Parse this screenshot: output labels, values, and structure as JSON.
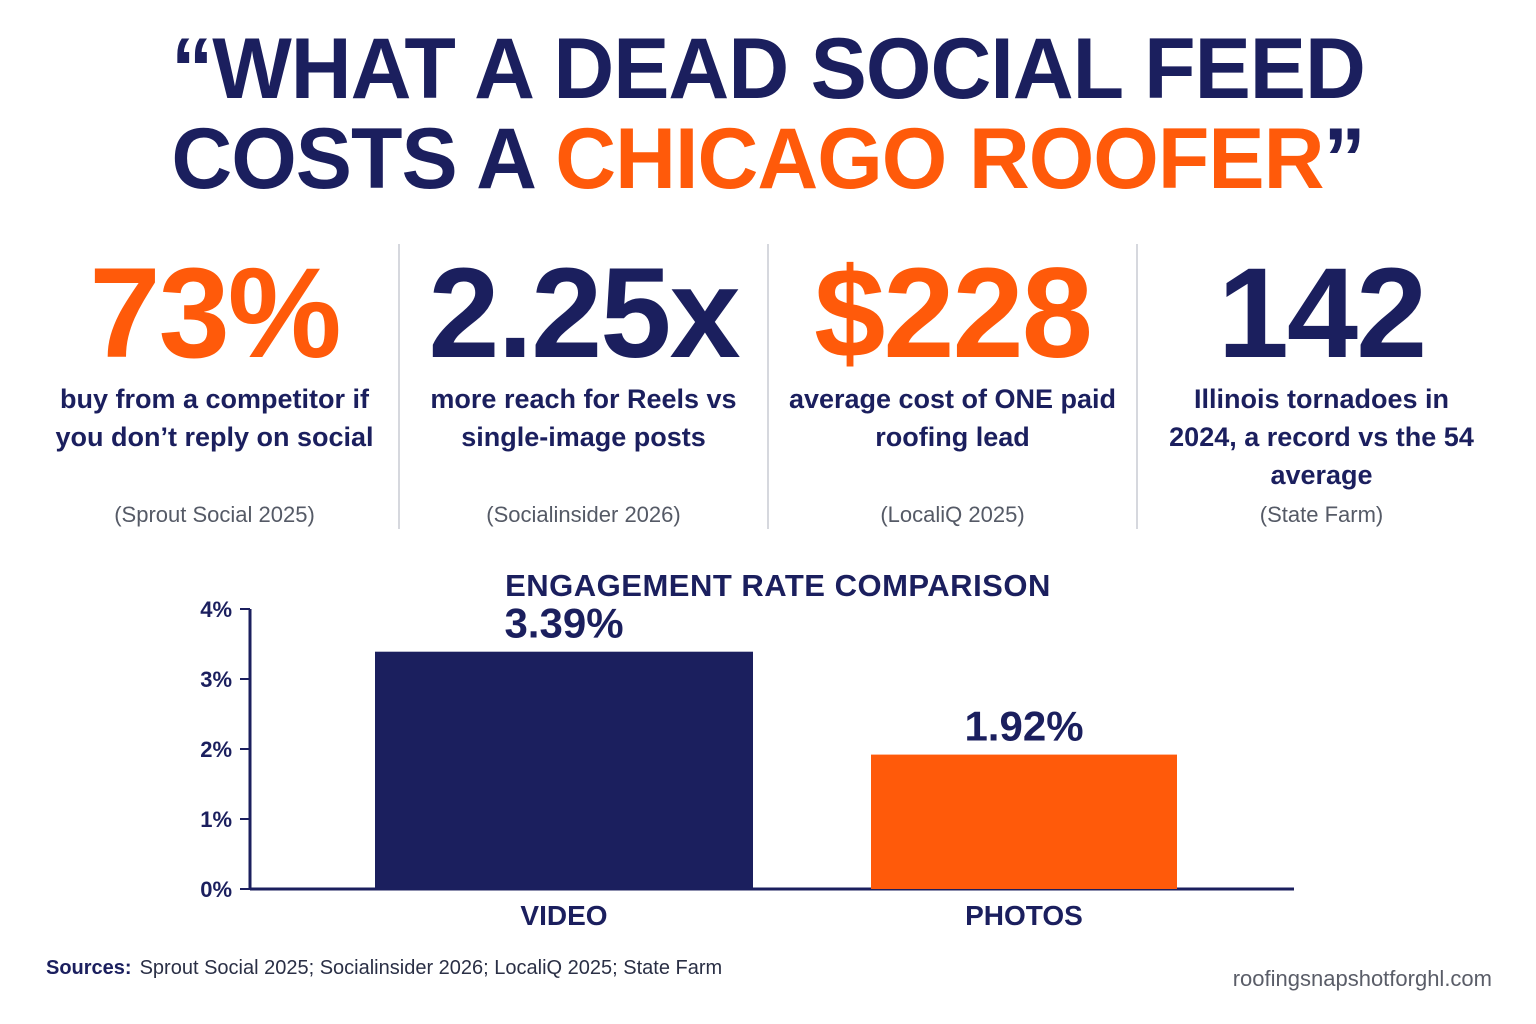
{
  "headline": {
    "line1": "“WHAT A DEAD SOCIAL FEED",
    "line2_prefix": "COSTS A ",
    "line2_accent": "CHICAGO ROOFER",
    "line2_suffix": "”"
  },
  "stats": [
    {
      "value": "73%",
      "color": "#ff5a0a",
      "description": "buy from a competitor if you don’t reply on social",
      "source": "(Sprout Social 2025)"
    },
    {
      "value": "2.25x",
      "color": "#1b1f5e",
      "description": "more reach for Reels vs single-image posts",
      "source": "(Socialinsider 2026)"
    },
    {
      "value": "$228",
      "color": "#ff5a0a",
      "description": "average cost of ONE paid roofing lead",
      "source": "(LocaliQ 2025)"
    },
    {
      "value": "142",
      "color": "#1b1f5e",
      "description": "Illinois tornadoes in 2024, a record vs the 54 average",
      "source": "(State Farm)"
    }
  ],
  "chart_data": {
    "type": "bar",
    "title": "ENGAGEMENT RATE COMPARISON",
    "categories": [
      "VIDEO",
      "PHOTOS"
    ],
    "values": [
      3.39,
      1.92
    ],
    "data_labels": [
      "3.39%",
      "1.92%"
    ],
    "bar_colors": [
      "#1b1f5e",
      "#ff5a0a"
    ],
    "ylim": [
      0,
      4
    ],
    "yticks": [
      0,
      1,
      2,
      3,
      4
    ],
    "ytick_labels": [
      "0%",
      "1%",
      "2%",
      "3%",
      "4%"
    ],
    "grid": false,
    "xlabel": "",
    "ylabel": ""
  },
  "footer": {
    "sources_label": "Sources:",
    "sources_text": "Sprout Social 2025; Socialinsider 2026; LocaliQ 2025; State Farm",
    "website": "roofingsnapshotforghl.com"
  },
  "colors": {
    "navy": "#1b1f5e",
    "orange": "#ff5a0a"
  }
}
